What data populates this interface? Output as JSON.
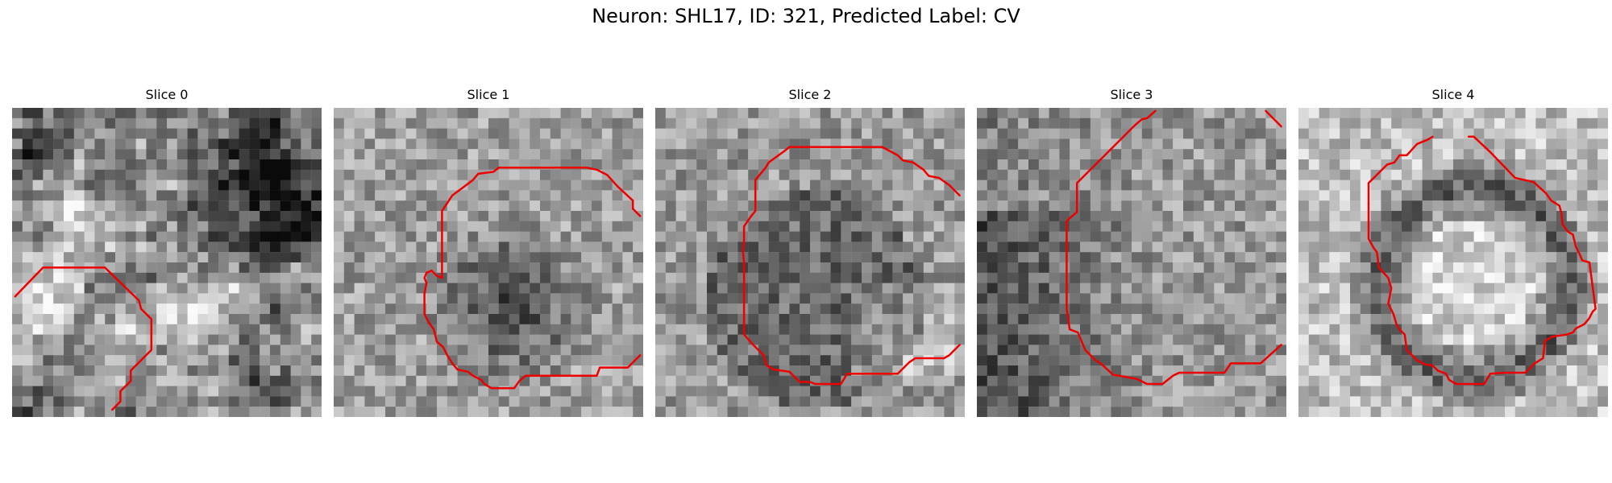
{
  "title": "Neuron: SHL17, ID: 321, Predicted Label: CV",
  "contour_color": "#ee0000",
  "colormap": "grayscale",
  "grid_cells": 30,
  "slices": [
    {
      "label": "Slice 0",
      "seed": 11,
      "pattern": "blobby",
      "contours": [
        [
          [
            0.3,
            18.3
          ],
          [
            3,
            15.5
          ],
          [
            9,
            15.5
          ],
          [
            12.3,
            18.7
          ],
          [
            12.5,
            19.5
          ],
          [
            13.5,
            20.5
          ],
          [
            13.5,
            23.5
          ],
          [
            11.5,
            25.5
          ],
          [
            11.5,
            26.5
          ],
          [
            10.5,
            27.5
          ],
          [
            10.5,
            28.5
          ],
          [
            9.7,
            29.3
          ]
        ]
      ]
    },
    {
      "label": "Slice 1",
      "seed": 23,
      "pattern": "dark_center",
      "contours": [
        [
          [
            29.7,
            10.5
          ],
          [
            29,
            9.8
          ],
          [
            29,
            9
          ],
          [
            27.5,
            7.6
          ],
          [
            26.5,
            6.5
          ],
          [
            25.5,
            6
          ],
          [
            24.5,
            5.8
          ],
          [
            16,
            5.8
          ],
          [
            15.5,
            6.2
          ],
          [
            14,
            6.4
          ],
          [
            13.5,
            7
          ],
          [
            11.5,
            8.5
          ],
          [
            10.5,
            10
          ],
          [
            10.5,
            16.5
          ],
          [
            10,
            16.3
          ],
          [
            9.5,
            15.8
          ],
          [
            9,
            16
          ],
          [
            8.8,
            16.5
          ],
          [
            9,
            17
          ],
          [
            8.8,
            18
          ],
          [
            8.8,
            20
          ],
          [
            9.2,
            20.8
          ],
          [
            9.7,
            21.5
          ],
          [
            10,
            22.7
          ],
          [
            10.6,
            23.2
          ],
          [
            11,
            24
          ],
          [
            11.5,
            24.8
          ],
          [
            12,
            25.4
          ],
          [
            13,
            25.6
          ],
          [
            13.5,
            26
          ],
          [
            14.3,
            26.4
          ],
          [
            14.6,
            26.8
          ],
          [
            15.3,
            27.2
          ],
          [
            17.5,
            27.2
          ],
          [
            18,
            26.5
          ],
          [
            18.6,
            26
          ],
          [
            25.5,
            26
          ],
          [
            25.8,
            25.2
          ],
          [
            28.5,
            25.2
          ],
          [
            29.7,
            24
          ]
        ]
      ]
    },
    {
      "label": "Slice 2",
      "seed": 37,
      "pattern": "dark_ring_right",
      "contours": [
        [
          [
            29.5,
            8.5
          ],
          [
            28.5,
            7.5
          ],
          [
            27.5,
            6.8
          ],
          [
            26.5,
            6.6
          ],
          [
            26,
            6
          ],
          [
            25,
            5.3
          ],
          [
            24,
            5.1
          ],
          [
            23.5,
            4.6
          ],
          [
            22,
            3.8
          ],
          [
            13,
            3.8
          ],
          [
            12.5,
            4.2
          ],
          [
            11,
            5.3
          ],
          [
            10.7,
            5.8
          ],
          [
            9.7,
            7
          ],
          [
            9.7,
            10
          ],
          [
            9.3,
            10.5
          ],
          [
            8.6,
            11.5
          ],
          [
            8.6,
            13
          ],
          [
            8.5,
            14
          ],
          [
            8.6,
            15
          ],
          [
            8.6,
            22
          ],
          [
            9.5,
            23
          ],
          [
            10.5,
            24
          ],
          [
            10.8,
            25
          ],
          [
            11.5,
            25.4
          ],
          [
            13,
            25.6
          ],
          [
            14,
            26.6
          ],
          [
            15,
            26.6
          ],
          [
            15.5,
            26.8
          ],
          [
            18,
            26.8
          ],
          [
            18.6,
            25.8
          ],
          [
            23.5,
            25.8
          ],
          [
            24.6,
            24.7
          ],
          [
            25.2,
            24.3
          ],
          [
            28,
            24.3
          ],
          [
            28.5,
            24
          ],
          [
            29.5,
            23
          ]
        ]
      ]
    },
    {
      "label": "Slice 3",
      "seed": 51,
      "pattern": "dark_left",
      "contours": [
        [
          [
            17.3,
            0.3
          ],
          [
            16.5,
            1
          ],
          [
            16,
            1.1
          ],
          [
            15.3,
            1.7
          ],
          [
            9.7,
            7.3
          ],
          [
            9.7,
            10.1
          ],
          [
            9,
            10.7
          ],
          [
            8.7,
            11
          ],
          [
            8.7,
            19.5
          ],
          [
            9,
            21.5
          ],
          [
            9.8,
            21.8
          ],
          [
            10.5,
            23.5
          ],
          [
            11.5,
            24.5
          ],
          [
            12,
            24.8
          ],
          [
            13.2,
            25.9
          ],
          [
            15.5,
            26.3
          ],
          [
            16.5,
            26.8
          ],
          [
            18,
            26.8
          ],
          [
            19,
            26
          ],
          [
            19.6,
            25.7
          ],
          [
            24,
            25.7
          ],
          [
            24.6,
            24.8
          ],
          [
            27.5,
            24.8
          ],
          [
            29.5,
            23
          ]
        ],
        [
          [
            28,
            0.3
          ],
          [
            29.5,
            1.8
          ]
        ]
      ]
    },
    {
      "label": "Slice 4",
      "seed": 67,
      "pattern": "ring",
      "contours": [
        [
          [
            13,
            2.8
          ],
          [
            12.5,
            3.1
          ],
          [
            11.5,
            3.5
          ],
          [
            10.5,
            4.6
          ],
          [
            9.8,
            4.6
          ],
          [
            9.3,
            5.3
          ],
          [
            8.6,
            5.5
          ],
          [
            6.8,
            7.3
          ],
          [
            6.8,
            12.7
          ],
          [
            7.3,
            13.6
          ],
          [
            7.6,
            14
          ],
          [
            7.8,
            15.5
          ],
          [
            8.7,
            16.5
          ],
          [
            9,
            17.5
          ],
          [
            8.7,
            19
          ],
          [
            9.2,
            20
          ],
          [
            9.5,
            21
          ],
          [
            9.8,
            21.5
          ],
          [
            10.3,
            22
          ],
          [
            10.5,
            23.5
          ],
          [
            11.5,
            24.5
          ],
          [
            12.3,
            24.9
          ],
          [
            13,
            25
          ],
          [
            13.5,
            25.5
          ],
          [
            14.3,
            25.8
          ],
          [
            14.6,
            26.4
          ],
          [
            15.3,
            26.8
          ],
          [
            18,
            26.8
          ],
          [
            18.6,
            25.8
          ],
          [
            20,
            25.7
          ],
          [
            22,
            25.7
          ],
          [
            22.9,
            24.8
          ],
          [
            23.7,
            24.3
          ],
          [
            23.9,
            22.6
          ],
          [
            24.6,
            22.2
          ],
          [
            26,
            22
          ],
          [
            26.6,
            21.8
          ],
          [
            26.9,
            21.4
          ],
          [
            27.7,
            21
          ],
          [
            28.2,
            20.4
          ],
          [
            28.5,
            19.8
          ],
          [
            28.8,
            19.5
          ],
          [
            28.2,
            15
          ],
          [
            27.5,
            14.8
          ],
          [
            27.3,
            14.3
          ],
          [
            26.9,
            13.5
          ],
          [
            26.6,
            12.3
          ],
          [
            26.1,
            12
          ],
          [
            25.6,
            11.3
          ],
          [
            25.5,
            10.3
          ],
          [
            25.3,
            9.5
          ],
          [
            24.5,
            9
          ],
          [
            24,
            8.3
          ],
          [
            22.8,
            7.2
          ],
          [
            21,
            6.8
          ],
          [
            18.5,
            4.2
          ],
          [
            17,
            2.8
          ],
          [
            16.5,
            2.8
          ]
        ]
      ]
    }
  ]
}
